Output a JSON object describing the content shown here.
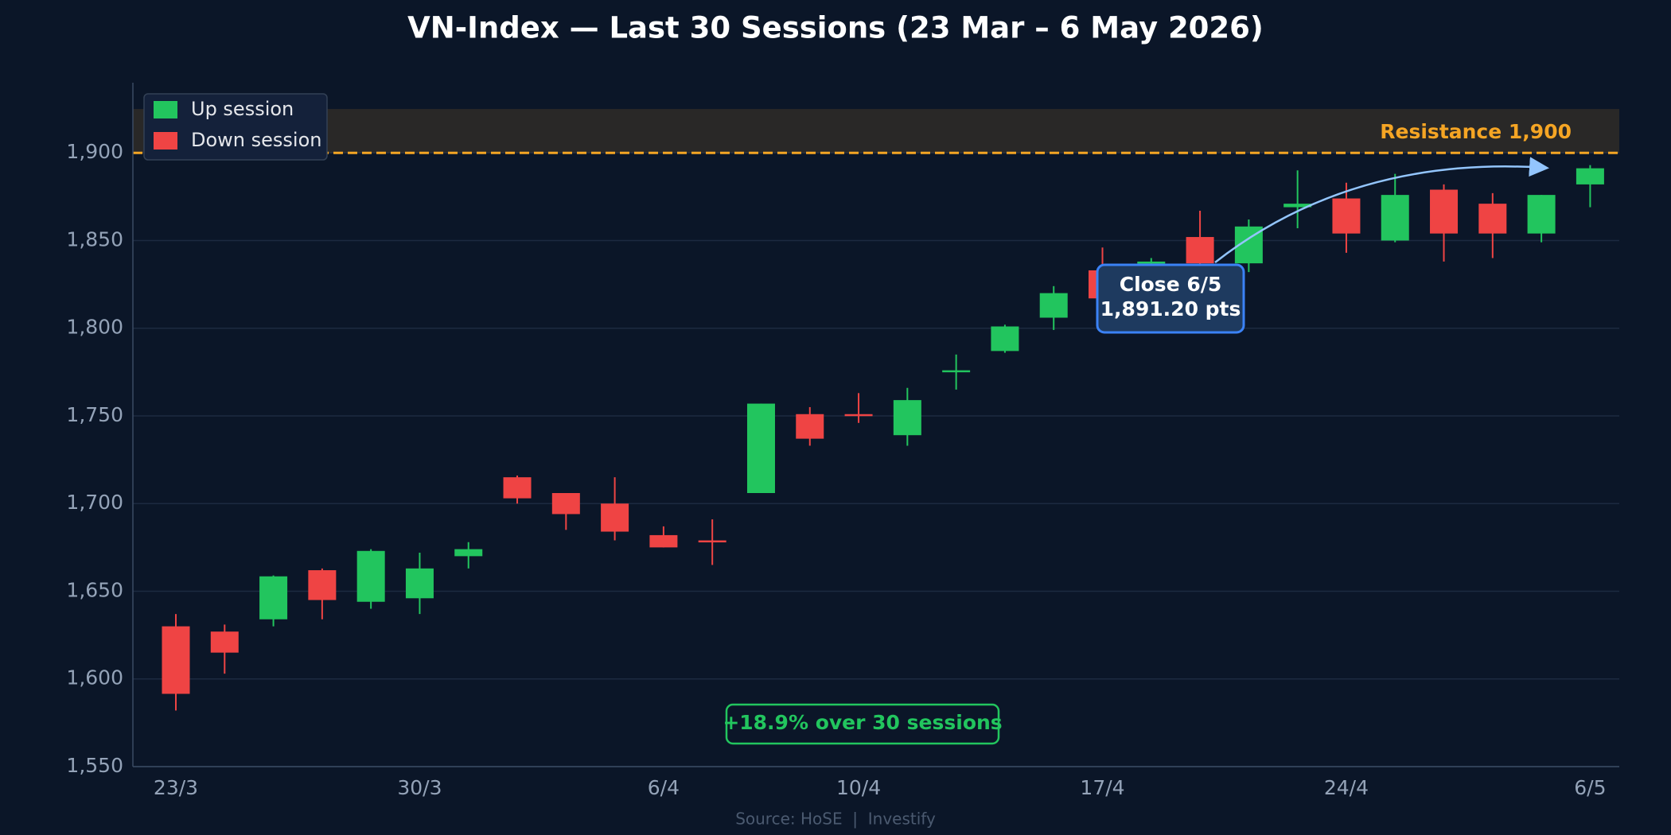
{
  "chart_data": {
    "type": "candlestick",
    "title": "VN-Index — Last 30 Sessions (23 Mar – 6 May 2026)",
    "categories": [
      "23/3",
      null,
      null,
      null,
      null,
      "30/3",
      null,
      null,
      null,
      null,
      "6/4",
      null,
      null,
      null,
      "10/4",
      null,
      null,
      null,
      null,
      "17/4",
      null,
      null,
      null,
      null,
      "24/4",
      null,
      null,
      null,
      null,
      "6/5"
    ],
    "open": [
      1630,
      1627,
      1634,
      1662,
      1644,
      1646,
      1670,
      1715,
      1706,
      1700,
      1682,
      1679,
      1706,
      1751,
      1751,
      1739,
      1775,
      1787,
      1806,
      1833,
      1837,
      1852,
      1837,
      1869,
      1874,
      1850,
      1879,
      1871,
      1854,
      1882
    ],
    "high": [
      1637,
      1631,
      1659,
      1663,
      1674,
      1672,
      1678,
      1716,
      1706,
      1715,
      1687,
      1691,
      1757,
      1755,
      1763,
      1766,
      1785,
      1802,
      1824,
      1846,
      1840,
      1867,
      1862,
      1890,
      1883,
      1888,
      1882,
      1877,
      1876,
      1893
    ],
    "low": [
      1582,
      1603,
      1630,
      1634,
      1640,
      1637,
      1663,
      1700,
      1685,
      1679,
      1675,
      1665,
      1706,
      1733,
      1746,
      1733,
      1765,
      1786,
      1799,
      1812,
      1834,
      1830,
      1832,
      1857,
      1843,
      1849,
      1838,
      1840,
      1849,
      1869
    ],
    "close": [
      1591.5,
      1615,
      1658.5,
      1645,
      1673,
      1663,
      1674,
      1703,
      1694,
      1684,
      1675,
      1678,
      1757,
      1737,
      1750,
      1759,
      1776,
      1801,
      1820,
      1817,
      1838,
      1837,
      1858,
      1871,
      1854,
      1876,
      1854,
      1854,
      1876,
      1891.2
    ],
    "series": [
      {
        "name": "Up session",
        "color": "#22c55e"
      },
      {
        "name": "Down session",
        "color": "#ef4444"
      }
    ],
    "ylim": [
      1550,
      1940
    ],
    "yticks": [
      {
        "value": 1550,
        "label": "1,550"
      },
      {
        "value": 1600,
        "label": "1,600"
      },
      {
        "value": 1650,
        "label": "1,650"
      },
      {
        "value": 1700,
        "label": "1,700"
      },
      {
        "value": 1750,
        "label": "1,750"
      },
      {
        "value": 1800,
        "label": "1,800"
      },
      {
        "value": 1850,
        "label": "1,850"
      },
      {
        "value": 1900,
        "label": "1,900"
      }
    ],
    "grid": true,
    "legend_position": "upper-left",
    "resistance": {
      "value": 1900,
      "label": "Resistance 1,900",
      "zone_top": 1925,
      "color": "#f5a524"
    },
    "close_callout": {
      "title": "Close 6/5",
      "label": "1,891.20 pts",
      "value": 1891.2
    },
    "change_note": "+18.9% over 30 sessions",
    "source": "Source: HoSE  |  Investify"
  }
}
